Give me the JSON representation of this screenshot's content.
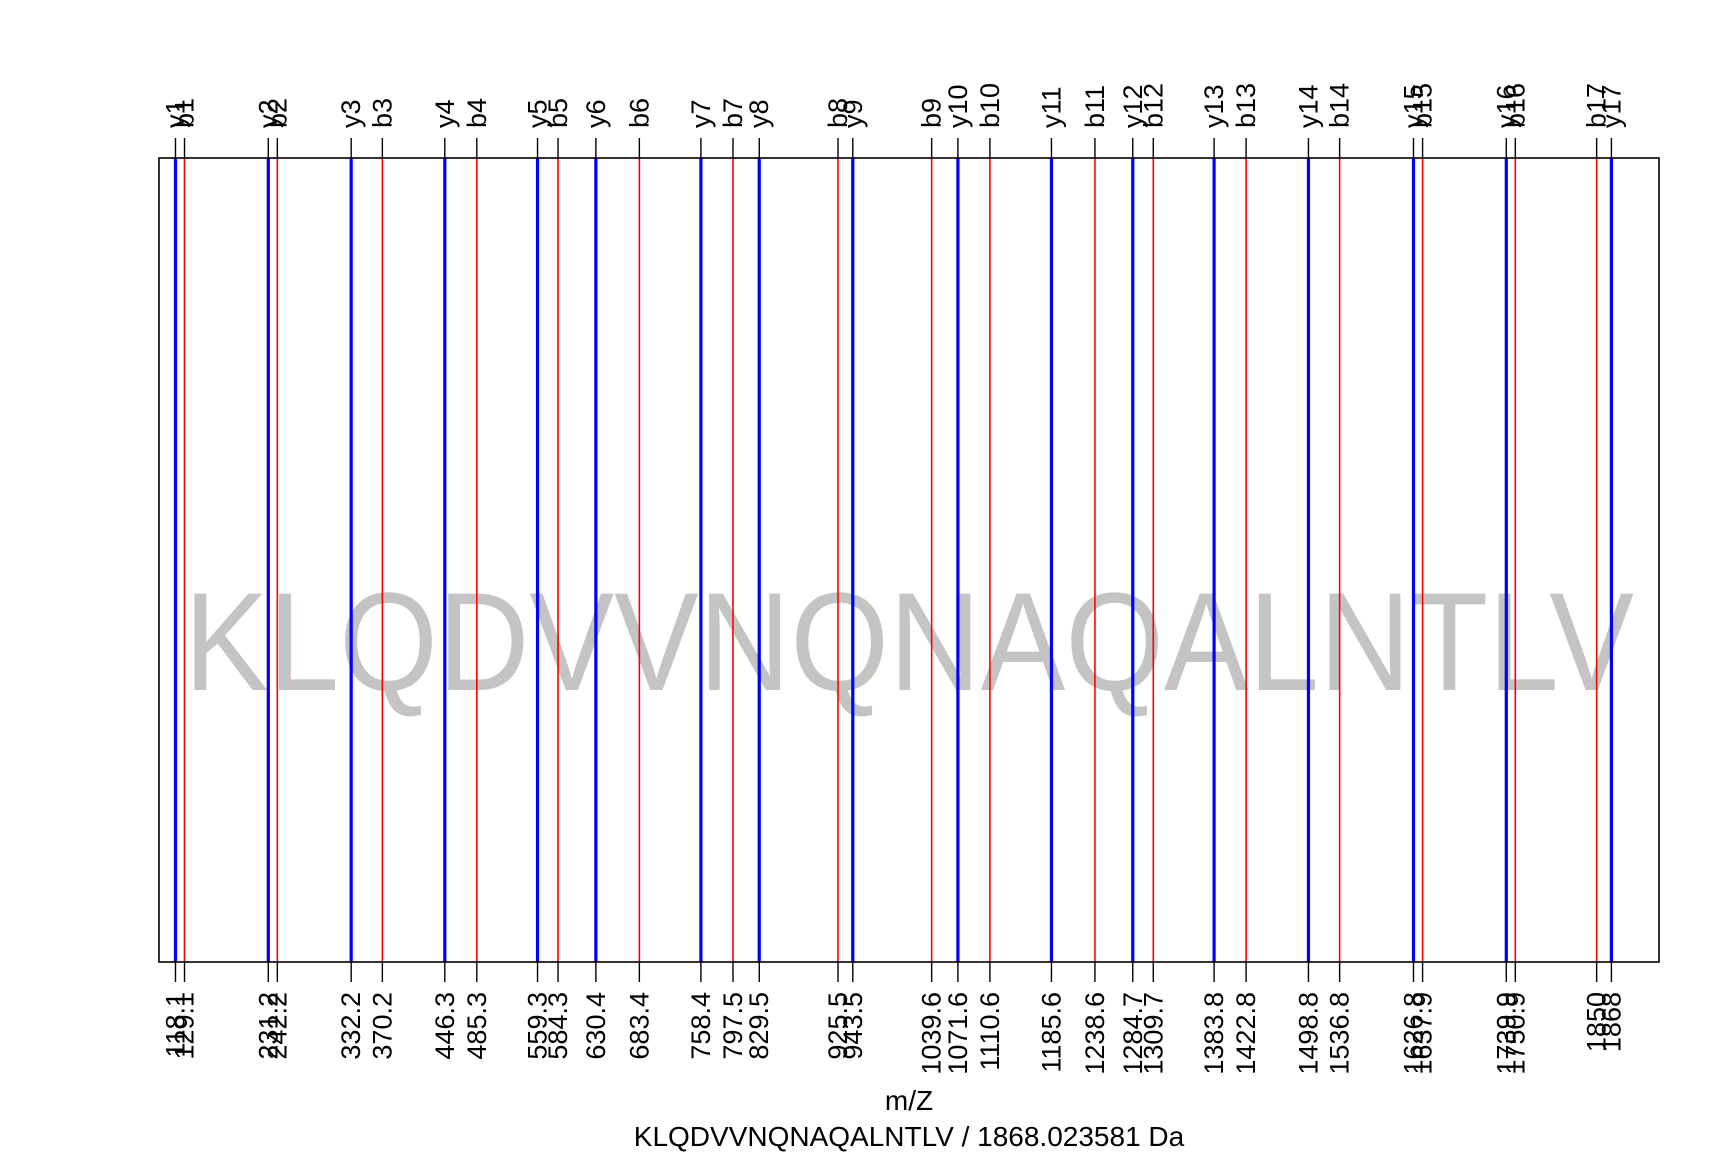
{
  "chart_data": {
    "type": "spectrum",
    "title": "",
    "xlabel": "m/Z",
    "caption": "KLQDVVNQNAQALNTLV / 1868.023581 Da",
    "watermark": "KLQDVVNQNAQALNTLV",
    "xlim": [
      98,
      1926
    ],
    "colors": {
      "y": "#0000ff",
      "b": "#ff0000",
      "frame": "#000000",
      "watermark": "#c4c4c4"
    },
    "series": [
      {
        "name": "y",
        "labels": [
          "y1",
          "y2",
          "y3",
          "y4",
          "y5",
          "y6",
          "y7",
          "y8",
          "y9",
          "y10",
          "y11",
          "y12",
          "y13",
          "y14",
          "y15",
          "y16",
          "y17"
        ],
        "mz": [
          118.1,
          231.2,
          332.2,
          446.3,
          559.3,
          630.4,
          758.4,
          829.5,
          943.5,
          1071.6,
          1185.6,
          1284.7,
          1383.8,
          1498.8,
          1626.8,
          1739.9,
          1868
        ]
      },
      {
        "name": "b",
        "labels": [
          "b1",
          "b2",
          "b3",
          "b4",
          "b5",
          "b6",
          "b7",
          "b8",
          "b9",
          "b10",
          "b11",
          "b12",
          "b13",
          "b14",
          "b15",
          "b16",
          "b17"
        ],
        "mz": [
          129.1,
          242.2,
          370.2,
          485.3,
          584.3,
          683.4,
          797.5,
          925.5,
          1039.6,
          1110.6,
          1238.6,
          1309.7,
          1422.8,
          1536.8,
          1637.9,
          1750.9,
          1850
        ]
      }
    ]
  }
}
